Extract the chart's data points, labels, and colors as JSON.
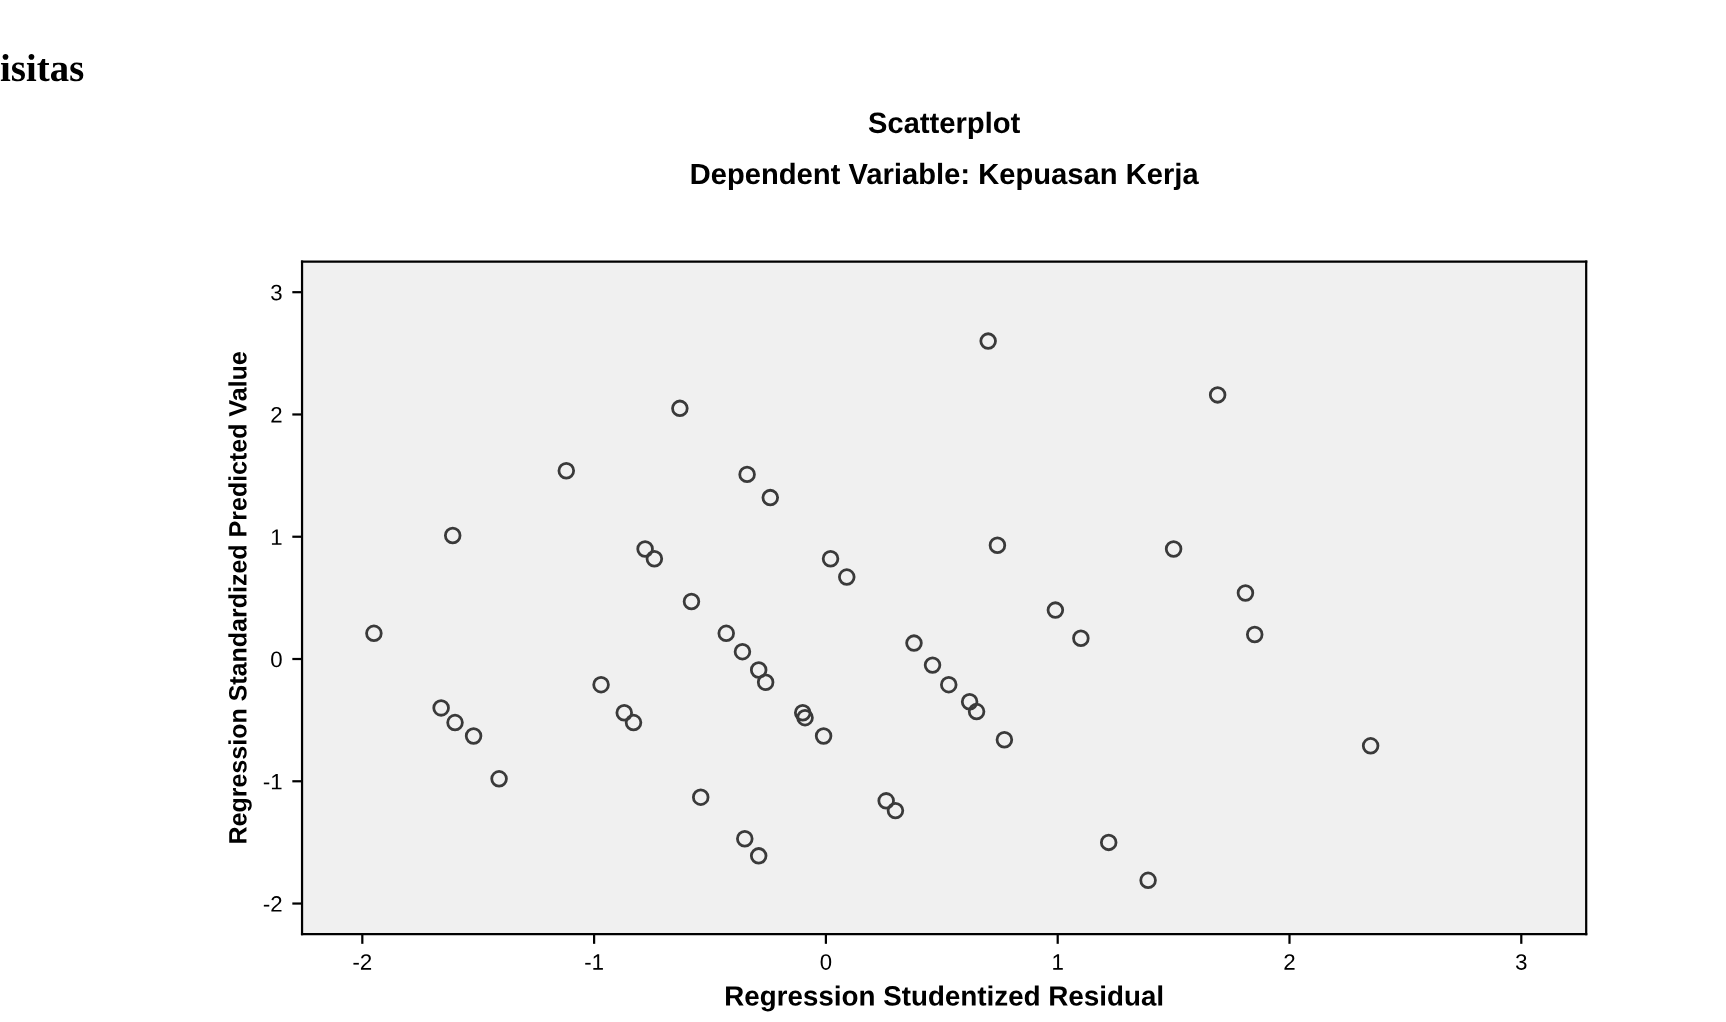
{
  "chart_data": {
    "type": "scatter",
    "title": "Scatterplot",
    "subtitle": "Dependent Variable: Kepuasan Kerja",
    "xlabel": "Regression Studentized Residual",
    "ylabel": "Regression Standardized Predicted Value",
    "annotations": [
      "isitas"
    ],
    "x": [
      -1.95,
      -1.61,
      -1.66,
      -1.6,
      -1.52,
      -1.41,
      -1.12,
      -0.97,
      -0.87,
      -0.83,
      -0.78,
      -0.74,
      -0.63,
      -0.58,
      -0.54,
      -0.43,
      -0.36,
      -0.29,
      -0.26,
      -0.34,
      -0.24,
      -0.35,
      -0.29,
      -0.1,
      -0.09,
      -0.01,
      0.02,
      0.09,
      0.26,
      0.3,
      0.38,
      0.46,
      0.53,
      0.62,
      0.65,
      0.77,
      0.7,
      0.74,
      0.99,
      1.1,
      1.22,
      1.39,
      1.5,
      1.69,
      1.81,
      1.85,
      2.35
    ],
    "series": [
      {
        "color": "#3a3a3a",
        "values": [
          0.21,
          1.01,
          -0.4,
          -0.52,
          -0.63,
          -0.98,
          1.54,
          -0.21,
          -0.44,
          -0.52,
          0.9,
          0.82,
          2.05,
          0.47,
          -1.13,
          0.21,
          0.06,
          -0.09,
          -0.19,
          1.51,
          1.32,
          -1.47,
          -1.61,
          -0.44,
          -0.48,
          -0.63,
          0.82,
          0.67,
          -1.16,
          -1.24,
          0.13,
          -0.05,
          -0.21,
          -0.35,
          -0.43,
          -0.66,
          2.6,
          0.93,
          0.4,
          0.17,
          -1.5,
          -1.81,
          0.9,
          2.16,
          0.54,
          0.2,
          -0.71
        ]
      }
    ],
    "xlim": [
      -2.26,
      3.28
    ],
    "ylim": [
      -2.25,
      3.25
    ],
    "xticks": [
      -2,
      -1,
      0,
      1,
      2,
      3
    ],
    "yticks": [
      -2,
      -1,
      0,
      1,
      2,
      3
    ],
    "marker": "circle",
    "grid": false,
    "legend": false
  }
}
